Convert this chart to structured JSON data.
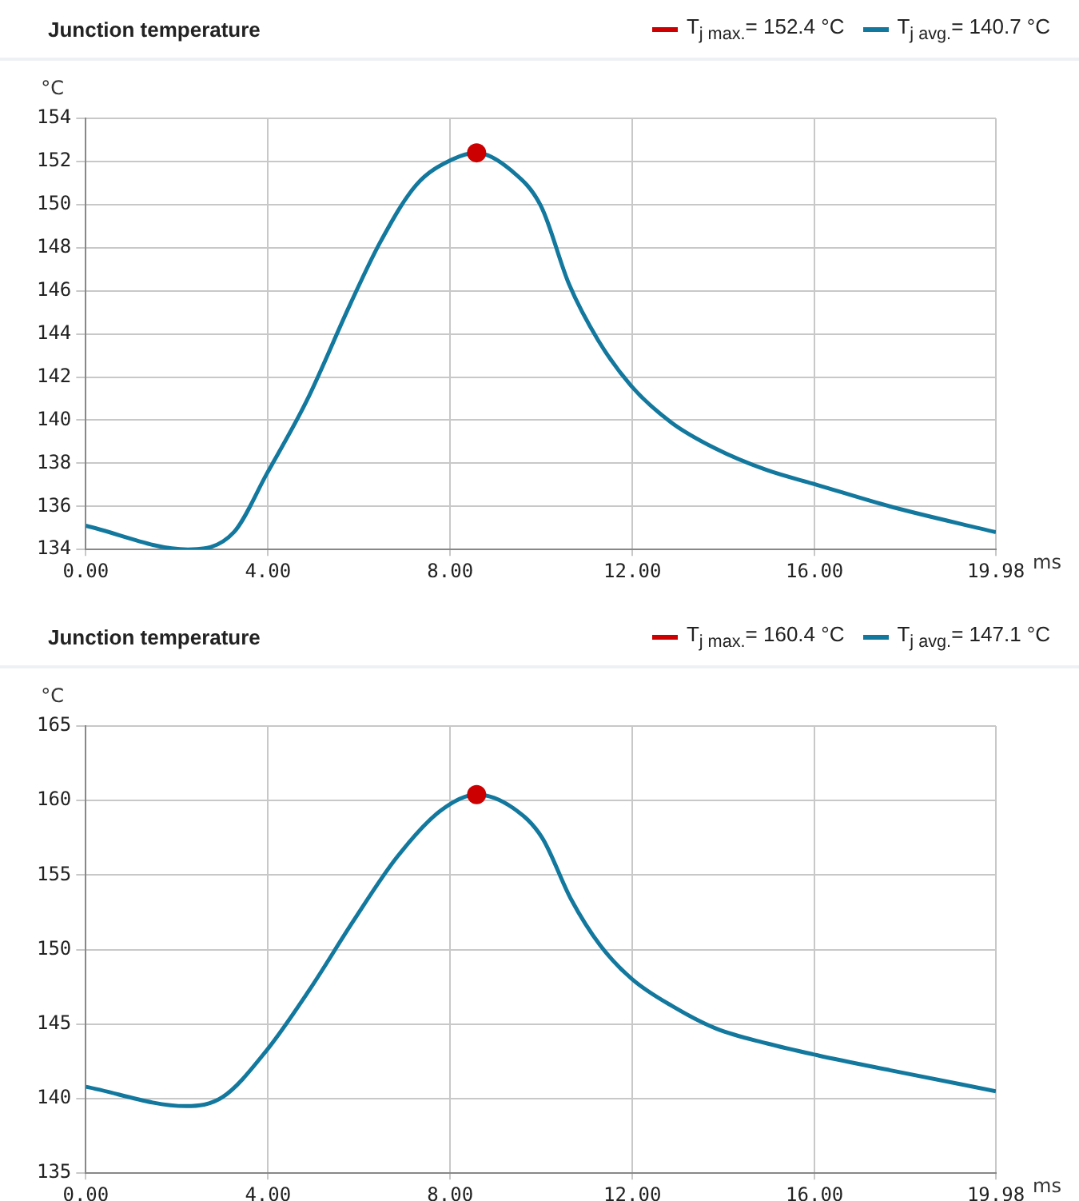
{
  "chart_data": [
    {
      "type": "line",
      "title": "Junction temperature",
      "xlabel": "ms",
      "ylabel": "°C",
      "legend": "top right",
      "grid": true,
      "marker": "none",
      "line_style": "solid",
      "xlim": [
        0,
        19.98
      ],
      "xticks": [
        {
          "value": 0,
          "label": "0.00"
        },
        {
          "value": 4,
          "label": "4.00"
        },
        {
          "value": 8,
          "label": "8.00"
        },
        {
          "value": 12,
          "label": "12.00"
        },
        {
          "value": 16,
          "label": "16.00"
        },
        {
          "value": 19.98,
          "label": "19.98"
        }
      ],
      "ylim": [
        134,
        154
      ],
      "yticks": [
        134,
        136,
        138,
        140,
        142,
        144,
        146,
        148,
        150,
        152,
        154
      ],
      "series": [
        {
          "name": "T$_{j max.}$= 152.4 °C",
          "type": "scatter",
          "marker": "circle",
          "color": "#cc0000",
          "x": [
            8.58
          ],
          "values": [
            152.4
          ]
        },
        {
          "name": "T$_{j avg.}$= 140.7 °C",
          "type": "line",
          "color": "#12789e",
          "x": [
            0,
            2.24,
            3.25,
            3.97,
            4.85,
            5.81,
            6.45,
            7.25,
            8.05,
            8.58,
            9.33,
            10.0,
            10.61,
            11.25,
            11.97,
            12.85,
            13.81,
            14.93,
            16.05,
            17.65,
            19.98
          ],
          "values": [
            135.1,
            134.0,
            134.8,
            137.5,
            140.9,
            145.4,
            148.2,
            150.9,
            152.1,
            152.4,
            151.6,
            149.9,
            146.3,
            143.7,
            141.6,
            139.9,
            138.7,
            137.7,
            137.0,
            136.0,
            134.8
          ]
        }
      ]
    },
    {
      "type": "line",
      "title": "Junction temperature",
      "xlabel": "ms",
      "ylabel": "°C",
      "legend": "top right",
      "grid": true,
      "marker": "none",
      "line_style": "solid",
      "xlim": [
        0,
        19.98
      ],
      "xticks": [
        {
          "value": 0,
          "label": "0.00"
        },
        {
          "value": 4,
          "label": "4.00"
        },
        {
          "value": 8,
          "label": "8.00"
        },
        {
          "value": 12,
          "label": "12.00"
        },
        {
          "value": 16,
          "label": "16.00"
        },
        {
          "value": 19.98,
          "label": "19.98"
        }
      ],
      "ylim": [
        135,
        165
      ],
      "yticks": [
        135,
        140,
        145,
        150,
        155,
        160,
        165
      ],
      "series": [
        {
          "name": "T$_{j max.}$= 160.4 °C",
          "type": "scatter",
          "marker": "circle",
          "color": "#cc0000",
          "x": [
            8.58
          ],
          "values": [
            160.4
          ]
        },
        {
          "name": "T$_{j avg.}$= 147.1 °C",
          "type": "line",
          "color": "#12789e",
          "x": [
            0,
            2.2,
            3.0,
            3.96,
            4.91,
            5.87,
            6.83,
            7.78,
            8.58,
            9.38,
            10.02,
            10.65,
            11.29,
            12.0,
            12.88,
            13.84,
            14.96,
            16.08,
            17.67,
            19.98
          ],
          "values": [
            140.8,
            139.5,
            140.1,
            143.2,
            147.3,
            151.9,
            156.2,
            159.3,
            160.4,
            159.5,
            157.5,
            153.4,
            150.3,
            148.0,
            146.2,
            144.7,
            143.7,
            142.9,
            141.9,
            140.5
          ]
        }
      ]
    }
  ]
}
